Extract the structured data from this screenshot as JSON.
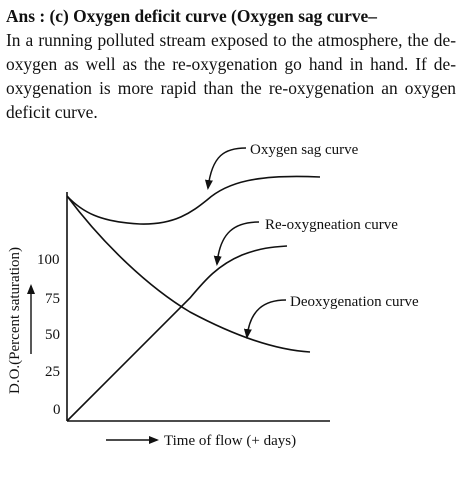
{
  "answer": {
    "heading": "Ans : (c) Oxygen deficit curve (Oxygen sag curve–",
    "body": "In a running polluted stream exposed to the atmosphere, the de-oxygen as well as the re-oxygenation go hand in hand. If de-oxygenation is more rapid than the re-oxygenation an oxygen deficit curve."
  },
  "chart_data": {
    "type": "line",
    "xlabel": "Time of flow (+ days)",
    "ylabel": "D.O.(Percent saturation)",
    "yticks": [
      0,
      25,
      50,
      75,
      100
    ],
    "series": [
      {
        "name": "Oxygen sag curve"
      },
      {
        "name": "Re-oxygneation curve"
      },
      {
        "name": "Deoxygenation curve"
      }
    ]
  },
  "colors": {
    "ink": "#111111",
    "background": "#ffffff"
  }
}
